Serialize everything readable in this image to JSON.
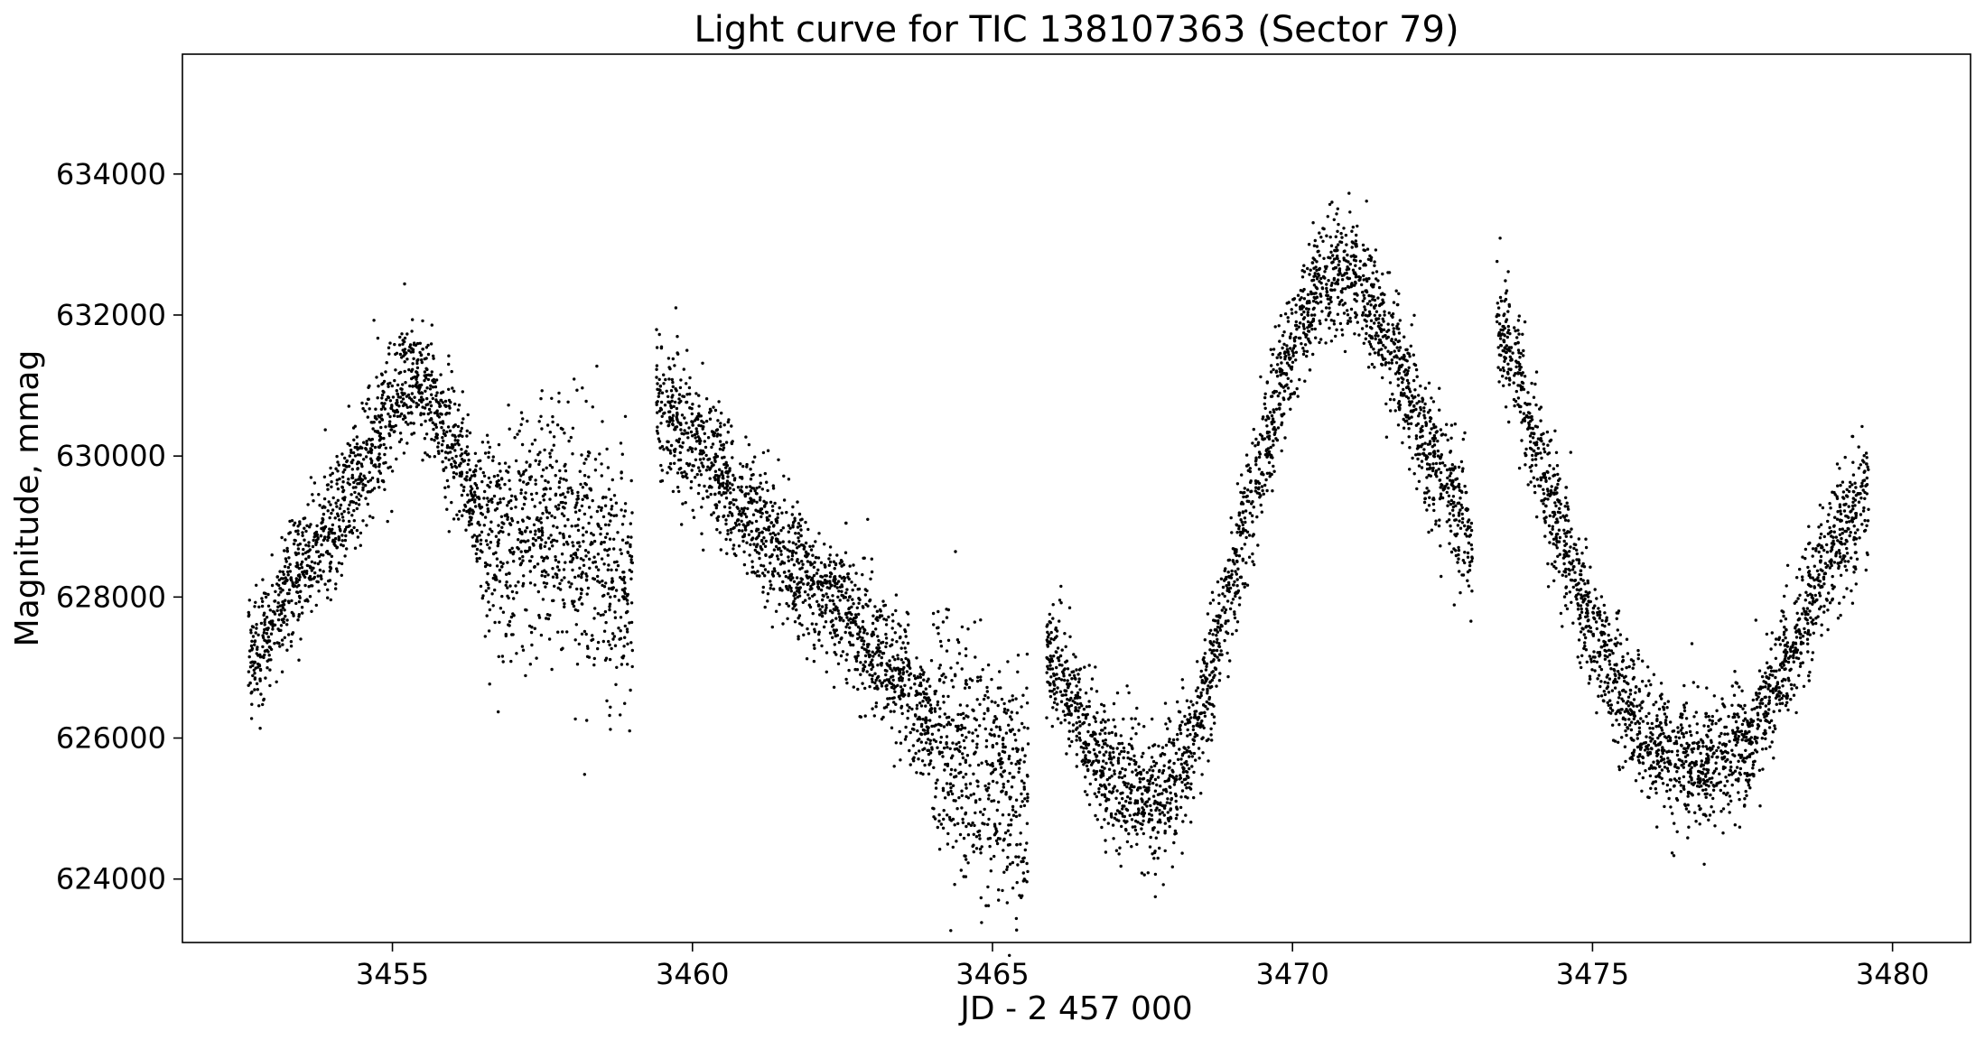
{
  "chart_data": {
    "type": "scatter",
    "title": "Light curve for TIC 138107363 (Sector 79)",
    "xlabel": "JD - 2 457 000",
    "ylabel": "Magnitude, mmag",
    "xlim": [
      3451.5,
      3481.3
    ],
    "ylim": [
      623100,
      635700
    ],
    "xticks": [
      3455,
      3460,
      3465,
      3470,
      3475,
      3480
    ],
    "xtick_labels": [
      "3455",
      "3460",
      "3465",
      "3470",
      "3475",
      "3480"
    ],
    "yticks": [
      624000,
      626000,
      628000,
      630000,
      632000,
      634000
    ],
    "ytick_labels": [
      "624000",
      "626000",
      "628000",
      "630000",
      "632000",
      "634000"
    ],
    "grid": false,
    "legend": "none",
    "marker_color": "#000000",
    "series": [
      {
        "name": "",
        "x": [
          3452.6,
          3452.8,
          3453.0,
          3453.3,
          3453.6,
          3454.0,
          3454.4,
          3454.8,
          3455.1,
          3455.4,
          3455.7,
          3456.0,
          3456.3,
          3456.6,
          3456.9,
          3457.2,
          3457.5,
          3457.8,
          3458.1,
          3458.4,
          3458.7,
          3459.0,
          3459.4,
          3459.7,
          3460.0,
          3460.5,
          3461.0,
          3461.5,
          3462.0,
          3462.5,
          3463.0,
          3463.5,
          3464.0,
          3464.4,
          3464.8,
          3465.2,
          3465.6,
          3465.9,
          3466.2,
          3466.5,
          3466.8,
          3467.1,
          3467.4,
          3467.7,
          3468.0,
          3468.3,
          3468.6,
          3469.0,
          3469.4,
          3469.8,
          3470.2,
          3470.6,
          3471.0,
          3471.4,
          3471.8,
          3472.2,
          3472.6,
          3473.0,
          3473.4,
          3473.7,
          3474.0,
          3474.4,
          3474.8,
          3475.2,
          3475.6,
          3476.0,
          3476.4,
          3476.8,
          3477.2,
          3477.6,
          3478.0,
          3478.4,
          3478.8,
          3479.2,
          3479.6
        ],
        "y": [
          627000,
          627300,
          627700,
          628100,
          628500,
          629000,
          629700,
          630400,
          630900,
          631100,
          630700,
          630100,
          629400,
          628900,
          628700,
          628900,
          629100,
          629000,
          628800,
          628500,
          628300,
          628200,
          630900,
          630600,
          630200,
          629700,
          629100,
          628600,
          628200,
          627800,
          627300,
          626800,
          626200,
          625800,
          625600,
          625400,
          625200,
          627300,
          626800,
          626200,
          625700,
          625400,
          625200,
          625100,
          625300,
          625800,
          626800,
          628200,
          629700,
          631000,
          632100,
          632500,
          632600,
          632000,
          631100,
          630200,
          629600,
          628800,
          632000,
          631300,
          630300,
          629100,
          628000,
          627100,
          626400,
          625900,
          625700,
          625600,
          625700,
          626000,
          626600,
          627400,
          628300,
          628900,
          629600
        ],
        "spread": 450
      }
    ]
  }
}
